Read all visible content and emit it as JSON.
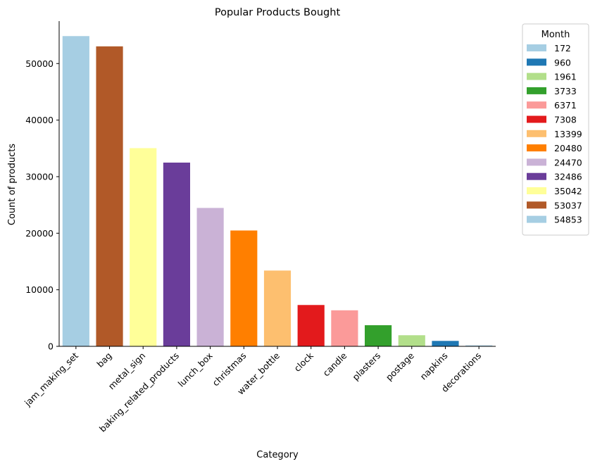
{
  "chart_data": {
    "type": "bar",
    "title": "Popular Products Bought",
    "xlabel": "Category",
    "ylabel": "Count of products",
    "ylim": [
      0,
      57500
    ],
    "yticks": [
      0,
      10000,
      20000,
      30000,
      40000,
      50000
    ],
    "grid": false,
    "legend": {
      "title": "Month",
      "placement": "outside-top-right",
      "entries": [
        {
          "label": "172",
          "color": "#a6cee3"
        },
        {
          "label": "960",
          "color": "#1f78b4"
        },
        {
          "label": "1961",
          "color": "#b2df8a"
        },
        {
          "label": "3733",
          "color": "#33a02c"
        },
        {
          "label": "6371",
          "color": "#fb9a99"
        },
        {
          "label": "7308",
          "color": "#e31a1c"
        },
        {
          "label": "13399",
          "color": "#fdbf6f"
        },
        {
          "label": "20480",
          "color": "#ff7f00"
        },
        {
          "label": "24470",
          "color": "#cab2d6"
        },
        {
          "label": "32486",
          "color": "#6a3d9a"
        },
        {
          "label": "35042",
          "color": "#ffff99"
        },
        {
          "label": "53037",
          "color": "#b15928"
        },
        {
          "label": "54853",
          "color": "#a6cee3"
        }
      ]
    },
    "categories": [
      "jam_making_set",
      "bag",
      "metal_sign",
      "baking_related_products",
      "lunch_box",
      "christmas",
      "water_bottle",
      "clock",
      "candle",
      "plasters",
      "postage",
      "napkins",
      "decorations"
    ],
    "values": [
      54853,
      53037,
      35042,
      32486,
      24470,
      20480,
      13399,
      7308,
      6371,
      3733,
      1961,
      960,
      172
    ],
    "colors": [
      "#a6cee3",
      "#b15928",
      "#ffff99",
      "#6a3d9a",
      "#cab2d6",
      "#ff7f00",
      "#fdbf6f",
      "#e31a1c",
      "#fb9a99",
      "#33a02c",
      "#b2df8a",
      "#1f78b4",
      "#a6cee3"
    ]
  }
}
